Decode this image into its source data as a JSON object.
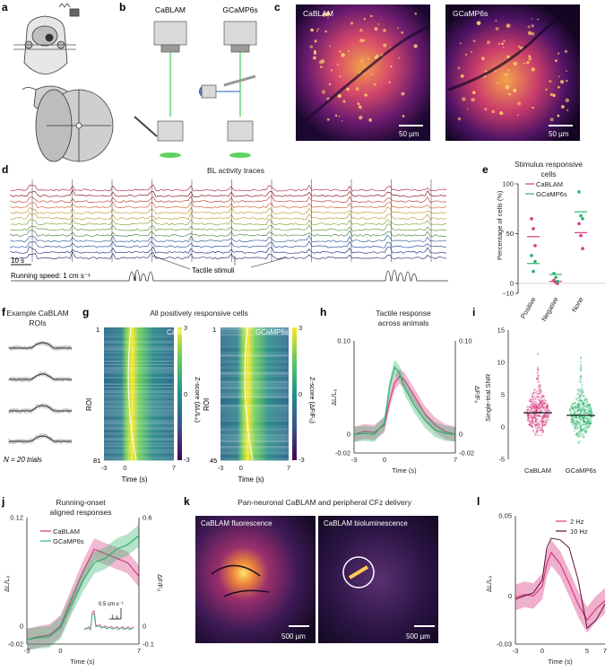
{
  "panels": {
    "a": {
      "label": "a"
    },
    "b": {
      "label": "b",
      "left_title": "CaBLAM",
      "right_title": "GCaMP6s"
    },
    "c": {
      "label": "c",
      "left_title": "CaBLAM",
      "right_title": "GCaMP6s",
      "scale_left": "50 µm",
      "scale_right": "50 µm"
    },
    "d": {
      "label": "d",
      "title": "BL activity traces",
      "time_scale": "10 s",
      "speed_label": "Running speed: 1 cm s⁻¹",
      "stim_label": "Tactile stimuli"
    },
    "e": {
      "label": "e",
      "title_line1": "Stimulus responsive",
      "title_line2": "cells"
    },
    "f": {
      "label": "f",
      "title_line1": "Example CaBLAM",
      "title_line2": "ROIs",
      "n_label": "N = 20 trials"
    },
    "g": {
      "label": "g",
      "title": "All positively responsive cells",
      "left_tag": "CaBLAM",
      "right_tag": "GCaMP6s",
      "ylabel": "ROI",
      "xlabel": "Time (s)",
      "cbar_left_label": "Z-score (ΔL/L₀)",
      "cbar_right_label": "Z-score (ΔF/F₀)",
      "left_rois_top": "1",
      "left_rois_bottom": "81",
      "right_rois_top": "1",
      "right_rois_bottom": "45",
      "x_ticks": [
        "-3",
        "0",
        "7"
      ],
      "cbar_ticks": [
        "3",
        "0",
        "-3"
      ]
    },
    "h": {
      "label": "h",
      "title_line1": "Tactile response",
      "title_line2": "across animals"
    },
    "i": {
      "label": "i"
    },
    "j": {
      "label": "j",
      "title_line1": "Running-onset",
      "title_line2": "aligned responses",
      "inset_label": "0.5 cm s⁻¹",
      "inset_time": "1 s"
    },
    "k": {
      "label": "k",
      "title": "Pan-neuronal CaBLAM and peripheral CFz delivery",
      "left_caption": "CaBLAM fluorescence",
      "right_caption": "CaBLAM bioluminescence",
      "scale_left": "500 µm",
      "scale_right": "500 µm"
    },
    "l": {
      "label": "l"
    }
  },
  "colors": {
    "cablam": "#d6397f",
    "gcamp": "#2bb36b",
    "bl_dark": "#5a0f3a"
  },
  "chart_data": [
    {
      "id": "e",
      "type": "scatter",
      "categories": [
        "Positive",
        "Negative",
        "None"
      ],
      "ylabel": "Percentage of cells (%)",
      "ylim": [
        -10,
        100
      ],
      "yticks": [
        "100",
        "50",
        "0",
        "−10"
      ],
      "legend": [
        "CaBLAM",
        "GCaMP6s"
      ],
      "series": [
        {
          "name": "CaBLAM",
          "means": [
            47,
            2,
            51
          ],
          "points": [
            [
              65,
              55,
              38
            ],
            [
              3,
              1,
              0
            ],
            [
              60,
              48,
              35
            ]
          ]
        },
        {
          "name": "GCaMP6s",
          "means": [
            20,
            9,
            72
          ],
          "points": [
            [
              28,
              12,
              22
            ],
            [
              10,
              6,
              2
            ],
            [
              92,
              68,
              65
            ]
          ]
        }
      ]
    },
    {
      "id": "h",
      "type": "line",
      "xlabel": "Time (s)",
      "ylabel_left": "ΔL/L₀",
      "ylabel_right": "ΔF/F₀",
      "x_ticks": [
        "-3",
        "0",
        "7"
      ],
      "y_ticks_left": [
        "0.10",
        "0",
        "-0.02"
      ],
      "y_ticks_right": [
        "0.10",
        "0",
        "-0.02"
      ],
      "x": [
        -3,
        -2,
        -1,
        0,
        0.5,
        1,
        1.5,
        2,
        3,
        4,
        5,
        6,
        7
      ],
      "series": [
        {
          "name": "CaBLAM",
          "values": [
            0,
            0.003,
            0.002,
            0.01,
            0.035,
            0.055,
            0.062,
            0.058,
            0.04,
            0.022,
            0.01,
            0.003,
            0
          ]
        },
        {
          "name": "GCaMP6s",
          "values": [
            0,
            0.001,
            0,
            0.012,
            0.05,
            0.072,
            0.065,
            0.05,
            0.03,
            0.015,
            0.005,
            0.001,
            0
          ]
        }
      ]
    },
    {
      "id": "i",
      "type": "scatter",
      "categories": [
        "CaBLAM",
        "GCaMP6s"
      ],
      "ylabel": "Single-trial SNR",
      "ylim": [
        -5,
        15
      ],
      "yticks": [
        "15",
        "10",
        "5",
        "0",
        "-5"
      ],
      "medians": [
        2.2,
        1.8
      ]
    },
    {
      "id": "j",
      "type": "line",
      "xlabel": "Time (s)",
      "ylabel_left": "ΔL/L₀",
      "ylabel_right": "ΔF/F₀",
      "x_ticks": [
        "-3",
        "0",
        "7"
      ],
      "y_ticks_left": [
        "0.12",
        "0",
        "-0.02"
      ],
      "y_ticks_right": [
        "0.6",
        "0",
        "-0.1"
      ],
      "legend": [
        "CaBLAM",
        "GCaMP6s"
      ],
      "x": [
        -3,
        -2,
        -1,
        0,
        1,
        2,
        3,
        4,
        5,
        6,
        7
      ],
      "series": [
        {
          "name": "CaBLAM",
          "values": [
            -0.015,
            -0.012,
            -0.01,
            0.0,
            0.03,
            0.06,
            0.085,
            0.08,
            0.075,
            0.07,
            0.055
          ]
        },
        {
          "name": "GCaMP6s",
          "values": [
            -0.015,
            -0.013,
            -0.012,
            -0.002,
            0.025,
            0.05,
            0.07,
            0.075,
            0.085,
            0.09,
            0.1
          ]
        }
      ]
    },
    {
      "id": "l",
      "type": "line",
      "xlabel": "Time (s)",
      "ylabel": "ΔL/L₀",
      "x_ticks": [
        "-3",
        "0",
        "5",
        "7"
      ],
      "y_ticks": [
        "0.05",
        "0",
        "-0.03"
      ],
      "legend": [
        "2 Hz",
        "10 Hz"
      ],
      "x": [
        -3,
        -2,
        -1,
        0,
        0.5,
        1,
        2,
        3,
        4,
        5,
        6,
        7
      ],
      "series": [
        {
          "name": "2 Hz",
          "values": [
            -0.001,
            0.001,
            0.0,
            0.006,
            0.02,
            0.027,
            0.02,
            0.008,
            -0.005,
            -0.015,
            -0.008,
            -0.003
          ]
        },
        {
          "name": "10 Hz",
          "values": [
            -0.002,
            0.0,
            0.002,
            0.01,
            0.03,
            0.036,
            0.035,
            0.03,
            0.01,
            -0.02,
            -0.015,
            -0.005
          ]
        }
      ]
    }
  ]
}
